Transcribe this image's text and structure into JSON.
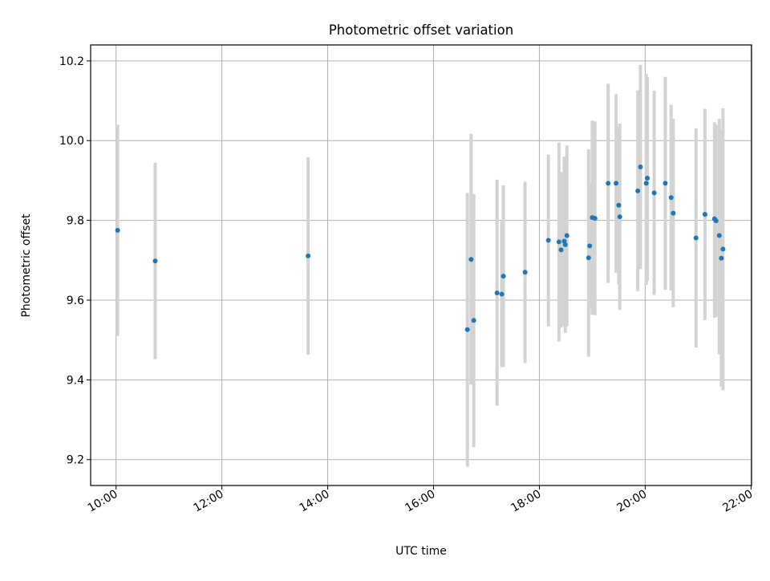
{
  "chart_data": {
    "type": "scatter",
    "title": "Photometric offset variation",
    "xlabel": "UTC time",
    "ylabel": "Photometric offset",
    "x_unit": "hours UTC",
    "xlim": [
      9.52,
      22.01
    ],
    "ylim": [
      9.135,
      10.24
    ],
    "x_ticks": [
      {
        "value": 10,
        "label": "10:00"
      },
      {
        "value": 12,
        "label": "12:00"
      },
      {
        "value": 14,
        "label": "14:00"
      },
      {
        "value": 16,
        "label": "16:00"
      },
      {
        "value": 18,
        "label": "18:00"
      },
      {
        "value": 20,
        "label": "20:00"
      },
      {
        "value": 22,
        "label": "22:00"
      }
    ],
    "y_ticks": [
      {
        "value": 9.2,
        "label": "9.2"
      },
      {
        "value": 9.4,
        "label": "9.4"
      },
      {
        "value": 9.6,
        "label": "9.6"
      },
      {
        "value": 9.8,
        "label": "9.8"
      },
      {
        "value": 10.0,
        "label": "10.0"
      },
      {
        "value": 10.2,
        "label": "10.2"
      }
    ],
    "grid": true,
    "marker_color": "#1f77b4",
    "errorbar_color": "#d3d3d3",
    "points": [
      {
        "x": 10.03,
        "y": 9.775,
        "lo": 9.51,
        "hi": 10.04
      },
      {
        "x": 10.74,
        "y": 9.698,
        "lo": 9.452,
        "hi": 9.945
      },
      {
        "x": 13.63,
        "y": 9.711,
        "lo": 9.463,
        "hi": 9.958
      },
      {
        "x": 16.64,
        "y": 9.526,
        "lo": 9.182,
        "hi": 9.869
      },
      {
        "x": 16.71,
        "y": 9.702,
        "lo": 9.388,
        "hi": 10.017
      },
      {
        "x": 16.76,
        "y": 9.549,
        "lo": 9.231,
        "hi": 9.866
      },
      {
        "x": 17.2,
        "y": 9.618,
        "lo": 9.335,
        "hi": 9.902
      },
      {
        "x": 17.29,
        "y": 9.615,
        "lo": 9.432,
        "hi": 9.798
      },
      {
        "x": 17.32,
        "y": 9.66,
        "lo": 9.433,
        "hi": 9.888
      },
      {
        "x": 17.73,
        "y": 9.67,
        "lo": 9.442,
        "hi": 9.897
      },
      {
        "x": 18.17,
        "y": 9.75,
        "lo": 9.534,
        "hi": 9.965
      },
      {
        "x": 18.37,
        "y": 9.746,
        "lo": 9.496,
        "hi": 9.995
      },
      {
        "x": 18.41,
        "y": 9.726,
        "lo": 9.531,
        "hi": 9.921
      },
      {
        "x": 18.47,
        "y": 9.748,
        "lo": 9.535,
        "hi": 9.96
      },
      {
        "x": 18.49,
        "y": 9.739,
        "lo": 9.518,
        "hi": 9.96
      },
      {
        "x": 18.52,
        "y": 9.762,
        "lo": 9.534,
        "hi": 9.988
      },
      {
        "x": 18.93,
        "y": 9.706,
        "lo": 9.458,
        "hi": 9.978
      },
      {
        "x": 18.95,
        "y": 9.736,
        "lo": 9.578,
        "hi": 9.894
      },
      {
        "x": 19.0,
        "y": 9.807,
        "lo": 9.563,
        "hi": 10.05
      },
      {
        "x": 19.05,
        "y": 9.805,
        "lo": 9.562,
        "hi": 10.048
      },
      {
        "x": 19.3,
        "y": 9.893,
        "lo": 9.643,
        "hi": 10.143
      },
      {
        "x": 19.45,
        "y": 9.893,
        "lo": 9.669,
        "hi": 10.117
      },
      {
        "x": 19.5,
        "y": 9.838,
        "lo": 9.64,
        "hi": 10.036
      },
      {
        "x": 19.52,
        "y": 9.809,
        "lo": 9.575,
        "hi": 10.043
      },
      {
        "x": 19.86,
        "y": 9.874,
        "lo": 9.622,
        "hi": 10.126
      },
      {
        "x": 19.91,
        "y": 9.934,
        "lo": 9.678,
        "hi": 10.19
      },
      {
        "x": 20.02,
        "y": 9.893,
        "lo": 9.638,
        "hi": 10.168
      },
      {
        "x": 20.04,
        "y": 9.906,
        "lo": 9.648,
        "hi": 10.159
      },
      {
        "x": 20.17,
        "y": 9.869,
        "lo": 9.613,
        "hi": 10.125
      },
      {
        "x": 20.38,
        "y": 9.893,
        "lo": 9.626,
        "hi": 10.16
      },
      {
        "x": 20.49,
        "y": 9.857,
        "lo": 9.624,
        "hi": 10.09
      },
      {
        "x": 20.53,
        "y": 9.818,
        "lo": 9.582,
        "hi": 10.055
      },
      {
        "x": 20.96,
        "y": 9.756,
        "lo": 9.481,
        "hi": 10.031
      },
      {
        "x": 21.13,
        "y": 9.815,
        "lo": 9.55,
        "hi": 10.08
      },
      {
        "x": 21.31,
        "y": 9.804,
        "lo": 9.556,
        "hi": 10.046
      },
      {
        "x": 21.34,
        "y": 9.799,
        "lo": 9.558,
        "hi": 10.04
      },
      {
        "x": 21.4,
        "y": 9.762,
        "lo": 9.464,
        "hi": 10.055
      },
      {
        "x": 21.44,
        "y": 9.705,
        "lo": 9.383,
        "hi": 10.027
      },
      {
        "x": 21.47,
        "y": 9.728,
        "lo": 9.374,
        "hi": 10.081
      }
    ]
  }
}
